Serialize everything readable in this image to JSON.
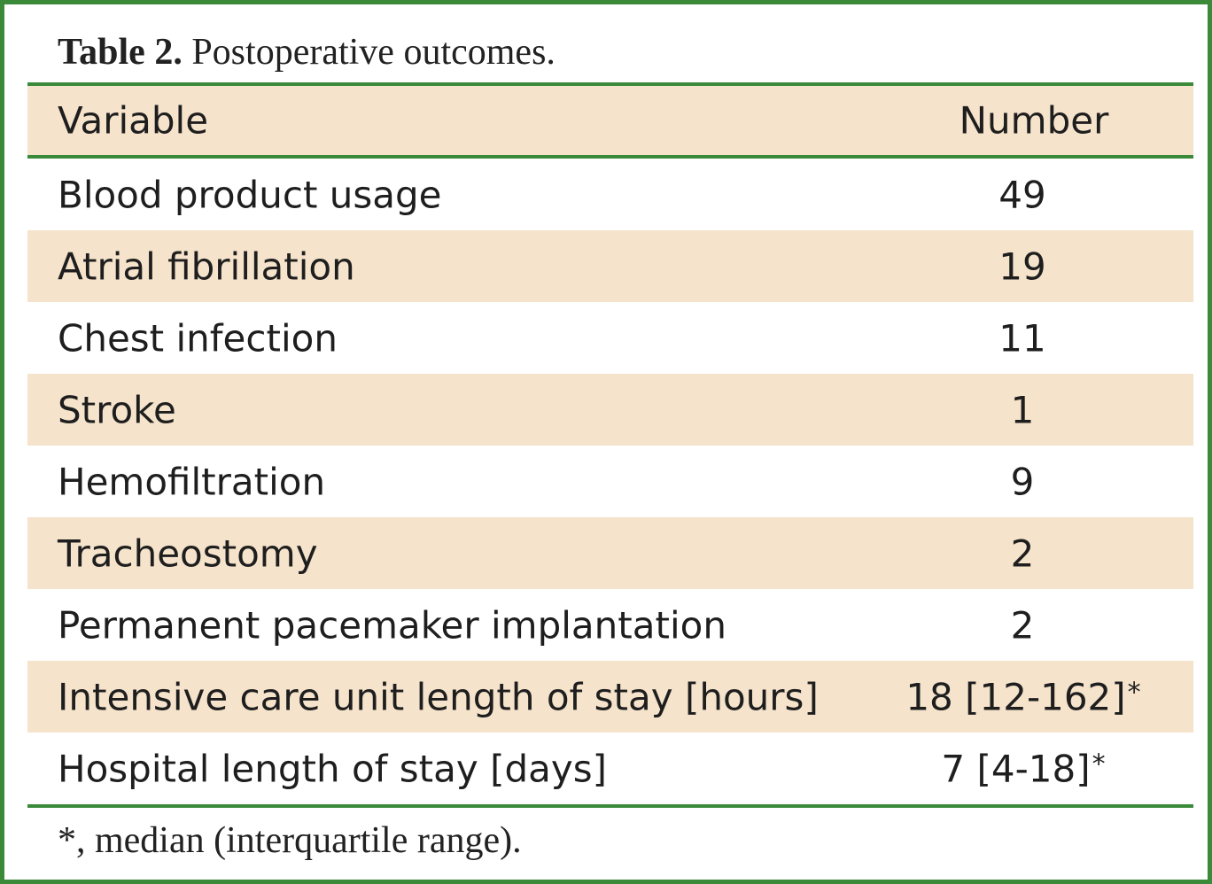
{
  "caption": {
    "label": "Table 2.",
    "text": " Postoperative outcomes."
  },
  "table": {
    "headers": [
      "Variable",
      "Number"
    ],
    "rows": [
      {
        "variable": "Blood product usage",
        "number": "49",
        "mark": ""
      },
      {
        "variable": "Atrial fibrillation",
        "number": "19",
        "mark": ""
      },
      {
        "variable": "Chest infection",
        "number": "11",
        "mark": ""
      },
      {
        "variable": "Stroke",
        "number": "1",
        "mark": ""
      },
      {
        "variable": "Hemofiltration",
        "number": "9",
        "mark": ""
      },
      {
        "variable": "Tracheostomy",
        "number": "2",
        "mark": ""
      },
      {
        "variable": "Permanent pacemaker implantation",
        "number": "2",
        "mark": ""
      },
      {
        "variable": "Intensive care unit length of stay [hours]",
        "number": "18 [12-162]",
        "mark": "*"
      },
      {
        "variable": "Hospital length of stay [days]",
        "number": "7 [4-18]",
        "mark": "*"
      }
    ]
  },
  "footnote": "*, median (interquartile range).",
  "colors": {
    "border": "#3a8a3a",
    "shade": "#f5e3cb"
  }
}
